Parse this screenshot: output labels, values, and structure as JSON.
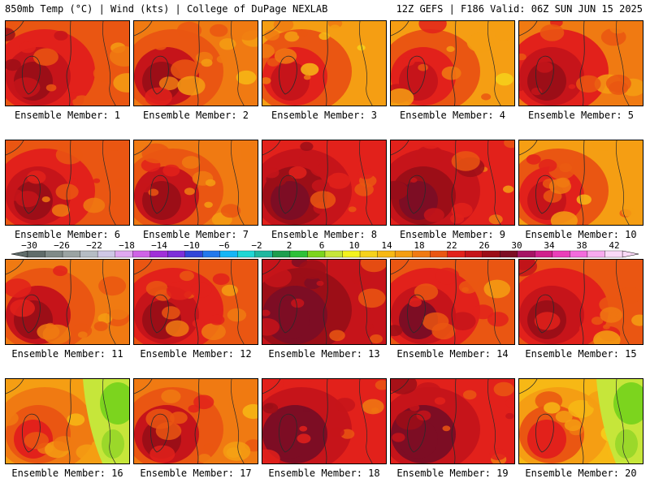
{
  "header": {
    "left": "850mb Temp (°C) | Wind (kts) | College of DuPage NEXLAB",
    "right": "12Z GEFS | F186 Valid: 06Z SUN JUN 15 2025"
  },
  "members": [
    {
      "label": "Ensemble Member: 1",
      "warmth": 0.7,
      "cool_corner": false
    },
    {
      "label": "Ensemble Member: 2",
      "warmth": 0.62,
      "cool_corner": false
    },
    {
      "label": "Ensemble Member: 3",
      "warmth": 0.55,
      "cool_corner": false
    },
    {
      "label": "Ensemble Member: 4",
      "warmth": 0.58,
      "cool_corner": false
    },
    {
      "label": "Ensemble Member: 5",
      "warmth": 0.66,
      "cool_corner": false
    },
    {
      "label": "Ensemble Member: 6",
      "warmth": 0.7,
      "cool_corner": false
    },
    {
      "label": "Ensemble Member: 7",
      "warmth": 0.62,
      "cool_corner": false
    },
    {
      "label": "Ensemble Member: 8",
      "warmth": 0.8,
      "cool_corner": false
    },
    {
      "label": "Ensemble Member: 9",
      "warmth": 0.8,
      "cool_corner": false
    },
    {
      "label": "Ensemble Member: 10",
      "warmth": 0.58,
      "cool_corner": false
    },
    {
      "label": "Ensemble Member: 11",
      "warmth": 0.62,
      "cool_corner": false
    },
    {
      "label": "Ensemble Member: 12",
      "warmth": 0.68,
      "cool_corner": false
    },
    {
      "label": "Ensemble Member: 13",
      "warmth": 0.88,
      "cool_corner": false
    },
    {
      "label": "Ensemble Member: 14",
      "warmth": 0.72,
      "cool_corner": false
    },
    {
      "label": "Ensemble Member: 15",
      "warmth": 0.7,
      "cool_corner": false
    },
    {
      "label": "Ensemble Member: 16",
      "warmth": 0.5,
      "cool_corner": true
    },
    {
      "label": "Ensemble Member: 17",
      "warmth": 0.62,
      "cool_corner": false
    },
    {
      "label": "Ensemble Member: 18",
      "warmth": 0.82,
      "cool_corner": false
    },
    {
      "label": "Ensemble Member: 19",
      "warmth": 0.84,
      "cool_corner": false
    },
    {
      "label": "Ensemble Member: 20",
      "warmth": 0.42,
      "cool_corner": true
    }
  ],
  "colorbar": {
    "labels": [
      "-30",
      "-26",
      "-22",
      "-18",
      "-14",
      "-10",
      "-6",
      "-2",
      "2",
      "6",
      "10",
      "14",
      "18",
      "22",
      "26",
      "30",
      "34",
      "38",
      "42"
    ],
    "colors": [
      "#606c6a",
      "#7f8a88",
      "#9aa3a2",
      "#b5bcc4",
      "#cfc7e6",
      "#e0a8f0",
      "#cf63e7",
      "#a030d8",
      "#7d2fd9",
      "#3246d8",
      "#2378ec",
      "#14b5f5",
      "#1fd7d4",
      "#20b8a0",
      "#1d9e4e",
      "#2dc037",
      "#7cd41e",
      "#c6e63a",
      "#f3f31f",
      "#f6d11b",
      "#f7b815",
      "#f59e13",
      "#f07a12",
      "#ea5612",
      "#e2211b",
      "#c6141a",
      "#9c0e17",
      "#7d0d24",
      "#a61464",
      "#d0208c",
      "#ea3eb8",
      "#f36bdc",
      "#f8aaee",
      "#fbd9f7"
    ]
  }
}
